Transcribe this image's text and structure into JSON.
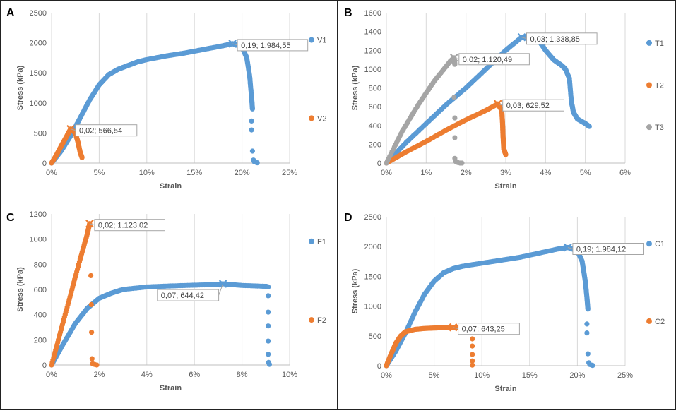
{
  "chart_data": [
    {
      "type": "scatter",
      "panel_label": "A",
      "xlabel": "Strain",
      "ylabel": "Stress (kPa)",
      "xlim": [
        0,
        0.25
      ],
      "ylim": [
        0,
        2500
      ],
      "xticks": [
        "0%",
        "5%",
        "10%",
        "15%",
        "20%",
        "25%"
      ],
      "yticks": [
        "0",
        "500",
        "1000",
        "1500",
        "2000",
        "2500"
      ],
      "grid": "vertical",
      "legend": "right",
      "series": [
        {
          "name": "V1",
          "color": "#5B9BD5",
          "curve": [
            [
              0,
              0
            ],
            [
              0.01,
              200
            ],
            [
              0.02,
              450
            ],
            [
              0.03,
              750
            ],
            [
              0.04,
              1050
            ],
            [
              0.05,
              1300
            ],
            [
              0.06,
              1470
            ],
            [
              0.07,
              1560
            ],
            [
              0.08,
              1620
            ],
            [
              0.09,
              1680
            ],
            [
              0.1,
              1720
            ],
            [
              0.12,
              1780
            ],
            [
              0.14,
              1830
            ],
            [
              0.16,
              1890
            ],
            [
              0.18,
              1950
            ],
            [
              0.19,
              1984.55
            ],
            [
              0.2,
              1930
            ],
            [
              0.205,
              1750
            ],
            [
              0.208,
              1450
            ],
            [
              0.21,
              1100
            ],
            [
              0.211,
              900
            ]
          ],
          "points": [
            [
              0.21,
              700
            ],
            [
              0.21,
              550
            ],
            [
              0.211,
              200
            ],
            [
              0.212,
              50
            ],
            [
              0.213,
              20
            ],
            [
              0.215,
              10
            ],
            [
              0.216,
              5
            ]
          ],
          "annotation": {
            "x": 0.19,
            "y": 1984.55,
            "text": "0,19; 1.984,55",
            "place": "right"
          }
        },
        {
          "name": "V2",
          "color": "#ED7D31",
          "curve": [
            [
              0,
              0
            ],
            [
              0.005,
              130
            ],
            [
              0.01,
              280
            ],
            [
              0.015,
              420
            ],
            [
              0.02,
              566.54
            ],
            [
              0.025,
              500
            ],
            [
              0.028,
              330
            ],
            [
              0.03,
              180
            ],
            [
              0.032,
              90
            ]
          ],
          "points": [],
          "annotation": {
            "x": 0.02,
            "y": 566.54,
            "text": "0,02; 566,54",
            "place": "right"
          }
        }
      ]
    },
    {
      "type": "scatter",
      "panel_label": "B",
      "xlabel": "Strain",
      "ylabel": "Stress (kPa)",
      "xlim": [
        0,
        0.06
      ],
      "ylim": [
        0,
        1600
      ],
      "xticks": [
        "0%",
        "1%",
        "2%",
        "3%",
        "4%",
        "5%",
        "6%"
      ],
      "yticks": [
        "0",
        "200",
        "400",
        "600",
        "800",
        "1000",
        "1200",
        "1400",
        "1600"
      ],
      "grid": "vertical",
      "legend": "right",
      "series": [
        {
          "name": "T1",
          "color": "#5B9BD5",
          "curve": [
            [
              0,
              0
            ],
            [
              0.005,
              220
            ],
            [
              0.01,
              420
            ],
            [
              0.015,
              620
            ],
            [
              0.02,
              800
            ],
            [
              0.025,
              1000
            ],
            [
              0.03,
              1200
            ],
            [
              0.034,
              1338.85
            ],
            [
              0.038,
              1320
            ],
            [
              0.04,
              1200
            ],
            [
              0.042,
              1100
            ],
            [
              0.044,
              1040
            ],
            [
              0.045,
              1000
            ],
            [
              0.046,
              900
            ],
            [
              0.0465,
              650
            ],
            [
              0.047,
              540
            ],
            [
              0.048,
              470
            ],
            [
              0.05,
              420
            ],
            [
              0.051,
              390
            ]
          ],
          "points": [],
          "annotation": {
            "x": 0.034,
            "y": 1338.85,
            "text": "0,03; 1.338,85",
            "place": "right"
          }
        },
        {
          "name": "T2",
          "color": "#ED7D31",
          "curve": [
            [
              0,
              0
            ],
            [
              0.005,
              120
            ],
            [
              0.01,
              230
            ],
            [
              0.015,
              350
            ],
            [
              0.02,
              460
            ],
            [
              0.025,
              560
            ],
            [
              0.028,
              629.52
            ],
            [
              0.029,
              560
            ],
            [
              0.0292,
              420
            ],
            [
              0.0293,
              300
            ],
            [
              0.0295,
              150
            ],
            [
              0.03,
              90
            ]
          ],
          "points": [],
          "annotation": {
            "x": 0.028,
            "y": 629.52,
            "text": "0,03; 629,52",
            "place": "right"
          }
        },
        {
          "name": "T3",
          "color": "#A5A5A5",
          "curve": [
            [
              0,
              0
            ],
            [
              0.004,
              340
            ],
            [
              0.008,
              620
            ],
            [
              0.012,
              870
            ],
            [
              0.016,
              1080
            ],
            [
              0.017,
              1120.49
            ],
            [
              0.0172,
              1050
            ]
          ],
          "points": [
            [
              0.017,
              700
            ],
            [
              0.0172,
              480
            ],
            [
              0.0172,
              270
            ],
            [
              0.0172,
              50
            ],
            [
              0.0174,
              20
            ],
            [
              0.0176,
              10
            ],
            [
              0.018,
              5
            ],
            [
              0.0185,
              0
            ],
            [
              0.019,
              0
            ]
          ],
          "annotation": {
            "x": 0.017,
            "y": 1120.49,
            "text": "0,02; 1.120,49",
            "place": "right"
          }
        }
      ]
    },
    {
      "type": "scatter",
      "panel_label": "C",
      "xlabel": "Strain",
      "ylabel": "Stress (kPa)",
      "xlim": [
        0,
        0.1
      ],
      "ylim": [
        0,
        1200
      ],
      "xticks": [
        "0%",
        "2%",
        "4%",
        "6%",
        "8%",
        "10%"
      ],
      "yticks": [
        "0",
        "200",
        "400",
        "600",
        "800",
        "1000",
        "1200"
      ],
      "grid": "vertical",
      "legend": "right",
      "series": [
        {
          "name": "F1",
          "color": "#5B9BD5",
          "curve": [
            [
              0,
              0
            ],
            [
              0.005,
              170
            ],
            [
              0.01,
              330
            ],
            [
              0.015,
              450
            ],
            [
              0.02,
              530
            ],
            [
              0.025,
              570
            ],
            [
              0.03,
              600
            ],
            [
              0.04,
              620
            ],
            [
              0.05,
              628
            ],
            [
              0.06,
              634
            ],
            [
              0.07,
              640
            ],
            [
              0.072,
              644.42
            ],
            [
              0.08,
              632
            ],
            [
              0.09,
              625
            ],
            [
              0.091,
              620
            ]
          ],
          "points": [
            [
              0.091,
              550
            ],
            [
              0.091,
              420
            ],
            [
              0.091,
              310
            ],
            [
              0.091,
              190
            ],
            [
              0.091,
              85
            ],
            [
              0.0912,
              20
            ],
            [
              0.0915,
              5
            ]
          ],
          "annotation": {
            "x": 0.072,
            "y": 644.42,
            "text": "0,07; 644,42",
            "place": "below-left"
          }
        },
        {
          "name": "F2",
          "color": "#ED7D31",
          "curve": [
            [
              0,
              0
            ],
            [
              0.004,
              280
            ],
            [
              0.008,
              560
            ],
            [
              0.012,
              840
            ],
            [
              0.015,
              1040
            ],
            [
              0.016,
              1123.02
            ]
          ],
          "points": [
            [
              0.0165,
              710
            ],
            [
              0.0167,
              480
            ],
            [
              0.0168,
              260
            ],
            [
              0.017,
              50
            ],
            [
              0.0172,
              10
            ],
            [
              0.018,
              5
            ],
            [
              0.019,
              0
            ]
          ],
          "annotation": {
            "x": 0.016,
            "y": 1123.02,
            "text": "0,02; 1.123,02",
            "place": "right"
          }
        }
      ]
    },
    {
      "type": "scatter",
      "panel_label": "D",
      "xlabel": "Strain",
      "ylabel": "Stress (kPa)",
      "xlim": [
        0,
        0.25
      ],
      "ylim": [
        0,
        2500
      ],
      "xticks": [
        "0%",
        "5%",
        "10%",
        "15%",
        "20%",
        "25%"
      ],
      "yticks": [
        "0",
        "500",
        "1000",
        "1500",
        "2000",
        "2500"
      ],
      "grid": "vertical",
      "legend": "right",
      "series": [
        {
          "name": "C1",
          "color": "#5B9BD5",
          "curve": [
            [
              0,
              0
            ],
            [
              0.01,
              250
            ],
            [
              0.02,
              550
            ],
            [
              0.03,
              900
            ],
            [
              0.04,
              1200
            ],
            [
              0.05,
              1420
            ],
            [
              0.06,
              1560
            ],
            [
              0.07,
              1630
            ],
            [
              0.08,
              1670
            ],
            [
              0.1,
              1720
            ],
            [
              0.12,
              1770
            ],
            [
              0.14,
              1820
            ],
            [
              0.16,
              1890
            ],
            [
              0.18,
              1960
            ],
            [
              0.19,
              1984.12
            ],
            [
              0.2,
              1930
            ],
            [
              0.205,
              1750
            ],
            [
              0.208,
              1450
            ],
            [
              0.21,
              1150
            ],
            [
              0.211,
              950
            ]
          ],
          "points": [
            [
              0.21,
              700
            ],
            [
              0.21,
              550
            ],
            [
              0.211,
              200
            ],
            [
              0.212,
              50
            ],
            [
              0.213,
              20
            ],
            [
              0.215,
              10
            ],
            [
              0.216,
              5
            ]
          ],
          "annotation": {
            "x": 0.19,
            "y": 1984.12,
            "text": "0,19; 1.984,12",
            "place": "right"
          }
        },
        {
          "name": "C2",
          "color": "#ED7D31",
          "curve": [
            [
              0,
              0
            ],
            [
              0.005,
              200
            ],
            [
              0.01,
              380
            ],
            [
              0.015,
              500
            ],
            [
              0.02,
              570
            ],
            [
              0.03,
              610
            ],
            [
              0.04,
              625
            ],
            [
              0.05,
              632
            ],
            [
              0.06,
              638
            ],
            [
              0.07,
              643.25
            ],
            [
              0.075,
              640
            ],
            [
              0.09,
              630
            ]
          ],
          "points": [
            [
              0.09,
              450
            ],
            [
              0.09,
              330
            ],
            [
              0.09,
              190
            ],
            [
              0.09,
              80
            ],
            [
              0.09,
              10
            ]
          ],
          "annotation": {
            "x": 0.07,
            "y": 643.25,
            "text": "0,07; 643,25",
            "place": "right"
          }
        }
      ]
    }
  ]
}
